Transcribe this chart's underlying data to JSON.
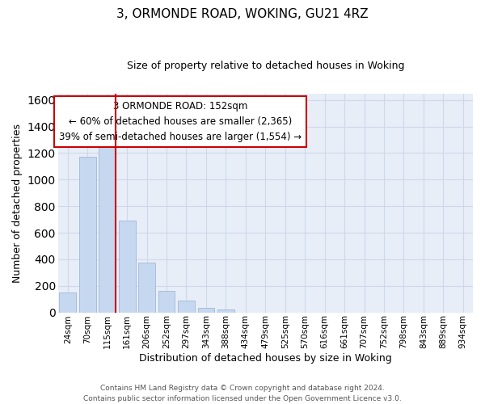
{
  "title": "3, ORMONDE ROAD, WOKING, GU21 4RZ",
  "subtitle": "Size of property relative to detached houses in Woking",
  "xlabel": "Distribution of detached houses by size in Woking",
  "ylabel": "Number of detached properties",
  "bar_labels": [
    "24sqm",
    "70sqm",
    "115sqm",
    "161sqm",
    "206sqm",
    "252sqm",
    "297sqm",
    "343sqm",
    "388sqm",
    "434sqm",
    "479sqm",
    "525sqm",
    "570sqm",
    "616sqm",
    "661sqm",
    "707sqm",
    "752sqm",
    "798sqm",
    "843sqm",
    "889sqm",
    "934sqm"
  ],
  "bar_values": [
    150,
    1175,
    1265,
    690,
    375,
    160,
    90,
    35,
    20,
    0,
    0,
    0,
    0,
    0,
    0,
    0,
    0,
    0,
    0,
    0,
    0
  ],
  "bar_color": "#c5d8f0",
  "bar_edge_color": "#a0b8d8",
  "grid_color": "#d0d8e8",
  "vline_color": "#cc0000",
  "annotation_text": "3 ORMONDE ROAD: 152sqm\n← 60% of detached houses are smaller (2,365)\n39% of semi-detached houses are larger (1,554) →",
  "annotation_box_color": "#ffffff",
  "annotation_box_edge": "#cc0000",
  "ylim": [
    0,
    1650
  ],
  "yticks": [
    0,
    200,
    400,
    600,
    800,
    1000,
    1200,
    1400,
    1600
  ],
  "footer_line1": "Contains HM Land Registry data © Crown copyright and database right 2024.",
  "footer_line2": "Contains public sector information licensed under the Open Government Licence v3.0.",
  "bg_color": "#ffffff",
  "plot_bg_color": "#e8eef8"
}
